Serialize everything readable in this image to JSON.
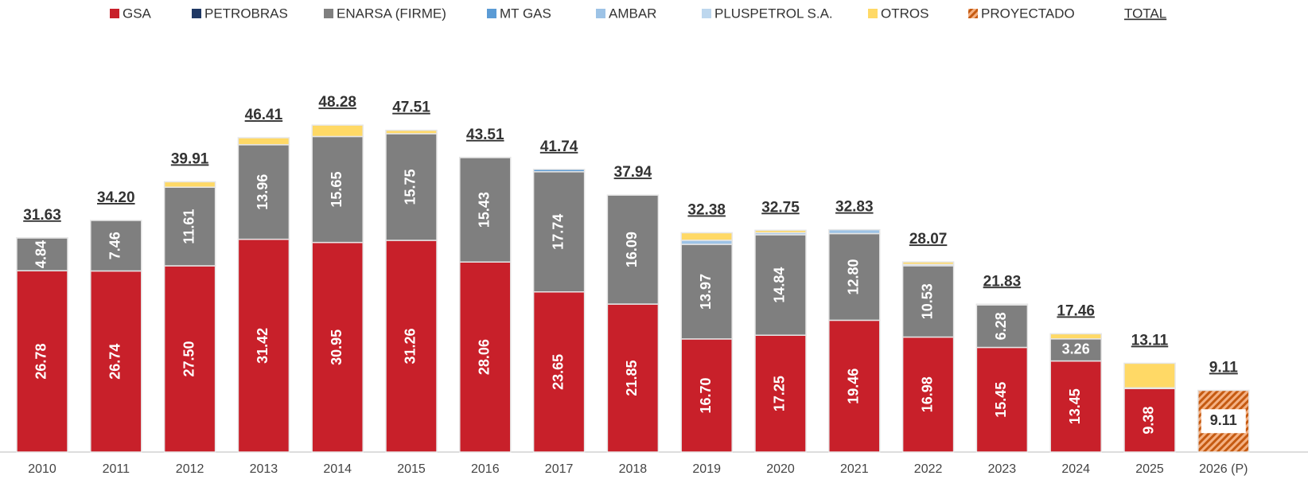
{
  "chart_data": {
    "type": "stacked_bar",
    "categories": [
      "2010",
      "2011",
      "2012",
      "2013",
      "2014",
      "2015",
      "2016",
      "2017",
      "2018",
      "2019",
      "2020",
      "2021",
      "2022",
      "2023",
      "2024",
      "2025",
      "2026 (P)"
    ],
    "ylim": [
      0,
      55
    ],
    "series": [
      {
        "name": "GSA",
        "color": "#c8202a",
        "values": [
          26.78,
          26.74,
          27.5,
          31.42,
          30.95,
          31.26,
          28.06,
          23.65,
          21.85,
          16.7,
          17.25,
          19.46,
          16.98,
          15.45,
          13.45,
          9.38,
          null
        ],
        "value_labels": [
          "26.78",
          "26.74",
          "27.50",
          "31.42",
          "30.95",
          "31.26",
          "28.06",
          "23.65",
          "21.85",
          "16.70",
          "17.25",
          "19.46",
          "16.98",
          "15.45",
          "13.45",
          "9.38",
          null
        ]
      },
      {
        "name": "PETROBRAS",
        "color": "#1f3864",
        "values": [
          null,
          null,
          null,
          null,
          null,
          null,
          null,
          null,
          null,
          null,
          null,
          null,
          null,
          null,
          null,
          null,
          null
        ]
      },
      {
        "name": "ENARSA (FIRME)",
        "color": "#7f7f7f",
        "values": [
          4.84,
          7.46,
          11.61,
          13.96,
          15.65,
          15.75,
          15.43,
          17.74,
          16.09,
          13.97,
          14.84,
          12.8,
          10.53,
          6.28,
          3.26,
          null,
          null
        ],
        "value_labels": [
          "4.84",
          "7.46",
          "11.61",
          "13.96",
          "15.65",
          "15.75",
          "15.43",
          "17.74",
          "16.09",
          "13.97",
          "14.84",
          "12.80",
          "10.53",
          "6.28",
          "3.26",
          null,
          null
        ]
      },
      {
        "name": "MT GAS",
        "color": "#5b9bd5",
        "values": [
          0.01,
          0,
          null,
          null,
          null,
          null,
          null,
          0.35,
          0,
          null,
          null,
          null,
          null,
          null,
          null,
          0.1,
          null
        ]
      },
      {
        "name": "AMBAR",
        "color": "#9dc3e6",
        "values": [
          null,
          null,
          null,
          null,
          null,
          null,
          null,
          null,
          null,
          0.6,
          0.3,
          0.57,
          0.2,
          null,
          null,
          null,
          null
        ]
      },
      {
        "name": "PLUSPETROL S.A.",
        "color": "#bdd7ee",
        "values": [
          null,
          null,
          null,
          null,
          null,
          null,
          null,
          null,
          null,
          null,
          null,
          null,
          null,
          null,
          null,
          null,
          null
        ]
      },
      {
        "name": "OTROS",
        "color": "#ffd966",
        "values": [
          null,
          null,
          0.8,
          1.03,
          1.68,
          0.5,
          0.02,
          null,
          null,
          1.11,
          0.36,
          null,
          0.36,
          0.1,
          0.75,
          3.63,
          null
        ]
      },
      {
        "name": "PROYECTADO",
        "color": "#c55a11",
        "pattern": "hatch",
        "values": [
          null,
          null,
          null,
          null,
          null,
          null,
          null,
          null,
          null,
          null,
          null,
          null,
          null,
          null,
          null,
          null,
          9.11
        ],
        "value_labels": [
          null,
          null,
          null,
          null,
          null,
          null,
          null,
          null,
          null,
          null,
          null,
          null,
          null,
          null,
          null,
          null,
          "9.11"
        ]
      }
    ],
    "totals": {
      "name": "TOTAL",
      "values": [
        31.63,
        34.2,
        39.91,
        46.41,
        48.28,
        47.51,
        43.51,
        41.74,
        37.94,
        32.38,
        32.75,
        32.83,
        28.07,
        21.83,
        17.46,
        13.11,
        9.11
      ],
      "value_labels": [
        "31.63",
        "34.20",
        "39.91",
        "46.41",
        "48.28",
        "47.51",
        "43.51",
        "41.74",
        "37.94",
        "32.38",
        "32.75",
        "32.83",
        "28.07",
        "21.83",
        "17.46",
        "13.11",
        "9.11"
      ]
    }
  }
}
